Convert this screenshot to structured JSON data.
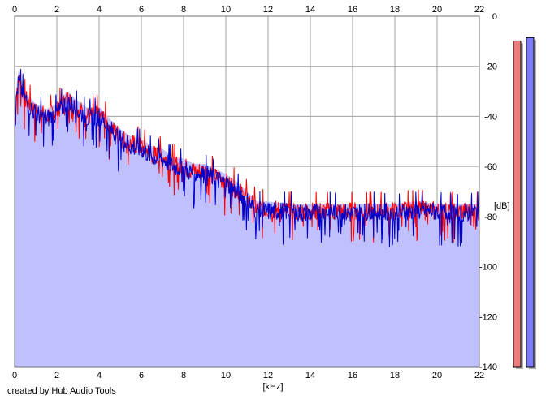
{
  "chart_data": {
    "type": "area",
    "xlabel": "[kHz]",
    "ylabel": "[dB]",
    "xlim": [
      0,
      22
    ],
    "ylim": [
      -140,
      0
    ],
    "x_ticks": [
      "0",
      "2",
      "4",
      "6",
      "8",
      "10",
      "12",
      "14",
      "16",
      "18",
      "20",
      "22"
    ],
    "y_ticks": [
      "0",
      "-20",
      "-40",
      "-60",
      "-80",
      "-100",
      "-120",
      "-140"
    ],
    "grid": true,
    "series": [
      {
        "color": "#ff0000",
        "x": [
          0,
          0.1,
          0.2,
          0.3,
          0.5,
          0.8,
          1,
          1.5,
          2,
          2.5,
          3,
          3.5,
          4,
          4.5,
          5,
          5.5,
          6,
          6.5,
          7,
          7.5,
          8,
          8.5,
          9,
          9.5,
          10,
          10.5,
          11,
          11.5,
          12,
          13,
          14,
          15,
          16,
          17,
          18,
          19,
          20,
          21,
          22
        ],
        "values": [
          -45,
          -30,
          -24,
          -28,
          -33,
          -36,
          -38,
          -40,
          -38,
          -33,
          -37,
          -40,
          -39,
          -44,
          -48,
          -51,
          -52,
          -55,
          -56,
          -59,
          -60,
          -62,
          -62,
          -64,
          -66,
          -69,
          -73,
          -77,
          -77,
          -78,
          -78,
          -78,
          -78,
          -78,
          -78,
          -77,
          -78,
          -78,
          -78
        ]
      },
      {
        "color": "#0000cc",
        "x": [
          0,
          0.1,
          0.2,
          0.3,
          0.5,
          0.8,
          1,
          1.5,
          2,
          2.5,
          3,
          3.5,
          4,
          4.5,
          5,
          5.5,
          6,
          6.5,
          7,
          7.5,
          8,
          8.5,
          9,
          9.5,
          10,
          10.5,
          11,
          11.5,
          12,
          13,
          14,
          15,
          16,
          17,
          18,
          19,
          20,
          21,
          22
        ],
        "values": [
          -45,
          -31,
          -26,
          -29,
          -33,
          -37,
          -39,
          -41,
          -39,
          -34,
          -38,
          -41,
          -40,
          -45,
          -49,
          -52,
          -53,
          -56,
          -57,
          -60,
          -61,
          -63,
          -63,
          -65,
          -67,
          -70,
          -74,
          -78,
          -78,
          -78,
          -79,
          -78,
          -79,
          -78,
          -79,
          -78,
          -78,
          -79,
          -78
        ]
      }
    ],
    "fill_color": "#c0c0ff",
    "level_meters": [
      {
        "color": "#ef7c7c",
        "level": 0.97
      },
      {
        "color": "#7b7bff",
        "level": 0.98
      }
    ]
  },
  "credit": "created by Hub Audio Tools"
}
